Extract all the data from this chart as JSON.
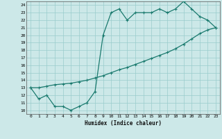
{
  "xlabel": "Humidex (Indice chaleur)",
  "background_color": "#cce8e8",
  "grid_color": "#99cccc",
  "line_color": "#1a7a6e",
  "xlim": [
    -0.5,
    23.5
  ],
  "ylim": [
    9.5,
    24.5
  ],
  "xticks": [
    0,
    1,
    2,
    3,
    4,
    5,
    6,
    7,
    8,
    9,
    10,
    11,
    12,
    13,
    14,
    15,
    16,
    17,
    18,
    19,
    20,
    21,
    22,
    23
  ],
  "yticks": [
    10,
    11,
    12,
    13,
    14,
    15,
    16,
    17,
    18,
    19,
    20,
    21,
    22,
    23,
    24
  ],
  "line1_x": [
    0,
    1,
    2,
    3,
    4,
    5,
    6,
    7,
    8,
    9,
    10,
    11,
    12,
    13,
    14,
    15,
    16,
    17,
    18,
    19,
    20,
    21,
    22,
    23
  ],
  "line1_y": [
    13,
    11.5,
    12,
    10.5,
    10.5,
    10,
    10.5,
    11,
    12.5,
    20,
    23,
    23.5,
    22,
    23,
    23,
    23,
    23.5,
    23,
    23.5,
    24.5,
    23.5,
    22.5,
    22,
    21
  ],
  "line2_x": [
    0,
    1,
    2,
    3,
    4,
    5,
    6,
    7,
    8,
    9,
    10,
    11,
    12,
    13,
    14,
    15,
    16,
    17,
    18,
    19,
    20,
    21,
    22,
    23
  ],
  "line2_y": [
    13,
    13,
    13.2,
    13.4,
    13.5,
    13.6,
    13.8,
    14.0,
    14.3,
    14.6,
    15.0,
    15.4,
    15.7,
    16.1,
    16.5,
    16.9,
    17.3,
    17.7,
    18.2,
    18.8,
    19.5,
    20.2,
    20.7,
    21.0
  ]
}
